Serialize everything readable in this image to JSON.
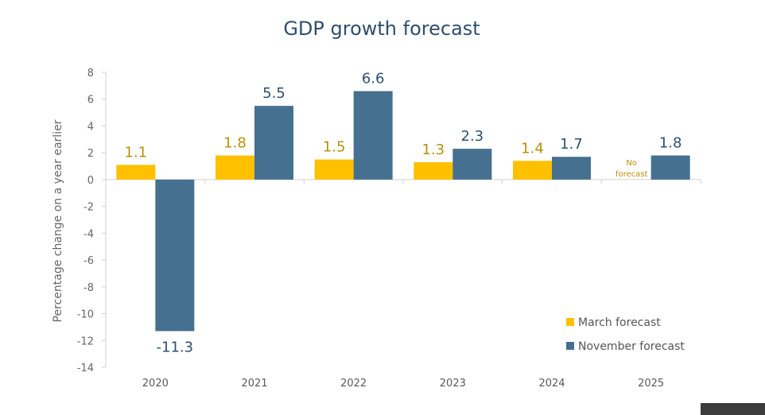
{
  "chart_data": {
    "type": "bar",
    "title": "GDP growth forecast",
    "xlabel": "",
    "ylabel": "Percentage change on a year earlier",
    "ylim": [
      -14,
      8
    ],
    "yticks": [
      8,
      6,
      4,
      2,
      0,
      -2,
      -4,
      -6,
      -8,
      -10,
      -12,
      -14
    ],
    "grid": false,
    "legend_position": "bottom-right",
    "categories": [
      "2020",
      "2021",
      "2022",
      "2023",
      "2024",
      "2025"
    ],
    "series": [
      {
        "name": "March forecast",
        "color": "#ffc000",
        "label_color": "#b8900a",
        "values": [
          1.1,
          1.8,
          1.5,
          1.3,
          1.4,
          null
        ],
        "labels": [
          "1.1",
          "1.8",
          "1.5",
          "1.3",
          "1.4",
          null
        ]
      },
      {
        "name": "November forecast",
        "color": "#46708f",
        "label_color": "#2e4f6b",
        "values": [
          -11.3,
          5.5,
          6.6,
          2.3,
          1.7,
          1.8
        ],
        "labels": [
          "-11.3",
          "5.5",
          "6.6",
          "2.3",
          "1.7",
          "1.8"
        ]
      }
    ],
    "annotations": [
      {
        "category": "2025",
        "series": "March forecast",
        "text_lines": [
          "No",
          "forecast"
        ]
      }
    ]
  }
}
